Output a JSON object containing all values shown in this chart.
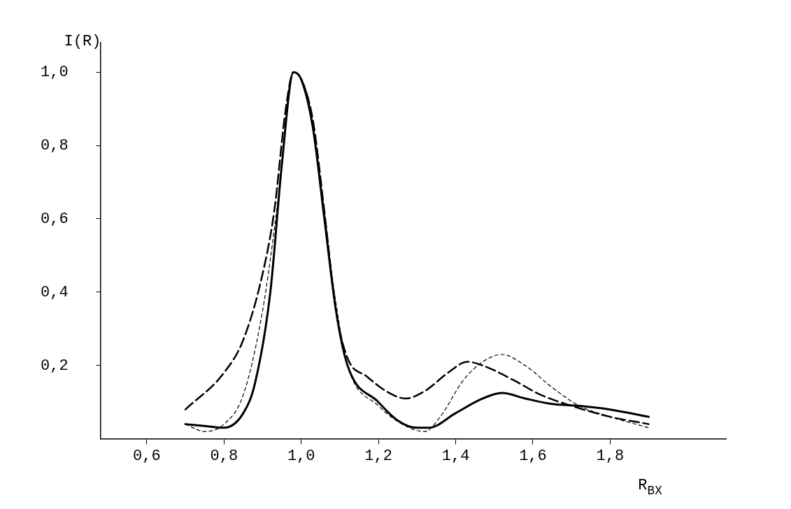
{
  "chart_data": {
    "type": "line",
    "ylabel": "I(R)",
    "xlabel": "R$_{BX}$",
    "xlim": [
      0.48,
      2.1
    ],
    "ylim": [
      0,
      1.08
    ],
    "xticks": [
      {
        "value": 0.6,
        "label": "0,6"
      },
      {
        "value": 0.8,
        "label": "0,8"
      },
      {
        "value": 1.0,
        "label": "1,0"
      },
      {
        "value": 1.2,
        "label": "1,2"
      },
      {
        "value": 1.4,
        "label": "1,4"
      },
      {
        "value": 1.6,
        "label": "1,6"
      },
      {
        "value": 1.8,
        "label": "1,8"
      }
    ],
    "yticks": [
      {
        "value": 0.2,
        "label": "0,2"
      },
      {
        "value": 0.4,
        "label": "0,4"
      },
      {
        "value": 0.6,
        "label": "0,6"
      },
      {
        "value": 0.8,
        "label": "0,8"
      },
      {
        "value": 1.0,
        "label": "1,0"
      }
    ],
    "grid": false,
    "legend": false,
    "marker": "none",
    "series": [
      {
        "color": "#000000",
        "line_style": "solid",
        "x": [
          0.7,
          0.75,
          0.8,
          0.85,
          0.88,
          0.92,
          0.95,
          0.98,
          1.0,
          1.03,
          1.06,
          1.09,
          1.12,
          1.2,
          1.25,
          1.3,
          1.33,
          1.4,
          1.47,
          1.52,
          1.58,
          1.65,
          1.72,
          1.8,
          1.9
        ],
        "values": [
          0.04,
          0.035,
          0.03,
          0.07,
          0.15,
          0.4,
          0.75,
          1.0,
          0.98,
          0.85,
          0.6,
          0.35,
          0.2,
          0.1,
          0.05,
          0.03,
          0.03,
          0.07,
          0.11,
          0.125,
          0.11,
          0.095,
          0.09,
          0.08,
          0.06
        ]
      },
      {
        "color": "#000000",
        "line_style": "dashed",
        "x": [
          0.7,
          0.8,
          0.85,
          0.9,
          0.93,
          0.96,
          0.98,
          1.0,
          1.03,
          1.06,
          1.09,
          1.12,
          1.17,
          1.22,
          1.27,
          1.32,
          1.38,
          1.43,
          1.47,
          1.55,
          1.62,
          1.7,
          1.8,
          1.9
        ],
        "values": [
          0.08,
          0.18,
          0.27,
          0.45,
          0.62,
          0.9,
          1.0,
          0.98,
          0.87,
          0.62,
          0.35,
          0.22,
          0.17,
          0.13,
          0.11,
          0.13,
          0.18,
          0.21,
          0.2,
          0.16,
          0.12,
          0.09,
          0.06,
          0.04
        ]
      },
      {
        "color": "#000000",
        "line_style": "dotted",
        "x": [
          0.7,
          0.75,
          0.8,
          0.85,
          0.9,
          0.94,
          0.98,
          1.02,
          1.05,
          1.09,
          1.12,
          1.2,
          1.28,
          1.32,
          1.36,
          1.42,
          1.47,
          1.52,
          1.58,
          1.65,
          1.72,
          1.8,
          1.9
        ],
        "values": [
          0.04,
          0.02,
          0.04,
          0.12,
          0.35,
          0.65,
          1.0,
          0.92,
          0.7,
          0.37,
          0.2,
          0.09,
          0.03,
          0.02,
          0.06,
          0.16,
          0.21,
          0.23,
          0.2,
          0.14,
          0.09,
          0.06,
          0.03
        ]
      }
    ]
  }
}
